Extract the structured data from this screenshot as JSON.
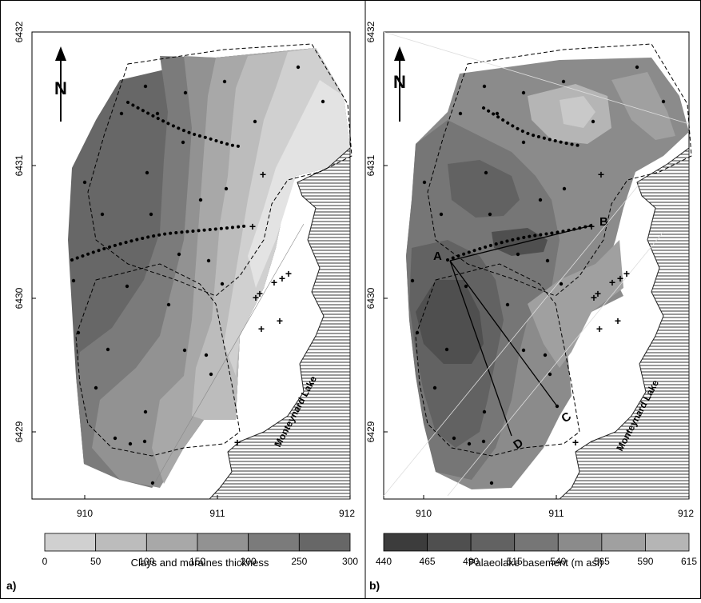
{
  "panels": [
    {
      "label": "a)",
      "y_ticks": [
        "6432",
        "6431",
        "6430",
        "6429"
      ],
      "x_ticks": [
        "910",
        "911",
        "912"
      ],
      "north_label": "N",
      "lake_label": "Monteynard Lake",
      "legend": {
        "title": "Clays and moraines thickness",
        "ticks": [
          "0",
          "50",
          "100",
          "150",
          "200",
          "250",
          "300"
        ],
        "colors": [
          "#e3e3e3",
          "#d0d0d0",
          "#bcbcbc",
          "#a8a8a8",
          "#929292",
          "#7b7b7b",
          "#676767"
        ]
      }
    },
    {
      "label": "b)",
      "y_ticks": [
        "6432",
        "6431",
        "6430",
        "6429"
      ],
      "x_ticks": [
        "910",
        "911",
        "912"
      ],
      "north_label": "N",
      "lake_label": "Monteynard Lake",
      "profile_labels": [
        "A",
        "B",
        "C",
        "D"
      ],
      "legend": {
        "title": "Palaeolake basement (m asl)",
        "ticks": [
          "440",
          "465",
          "490",
          "515",
          "540",
          "565",
          "590",
          "615"
        ],
        "colors": [
          "#3c3c3c",
          "#4f4f4f",
          "#626262",
          "#767676",
          "#8b8b8b",
          "#a0a0a0",
          "#b5b5b5",
          "#c9c9c9"
        ]
      }
    }
  ]
}
